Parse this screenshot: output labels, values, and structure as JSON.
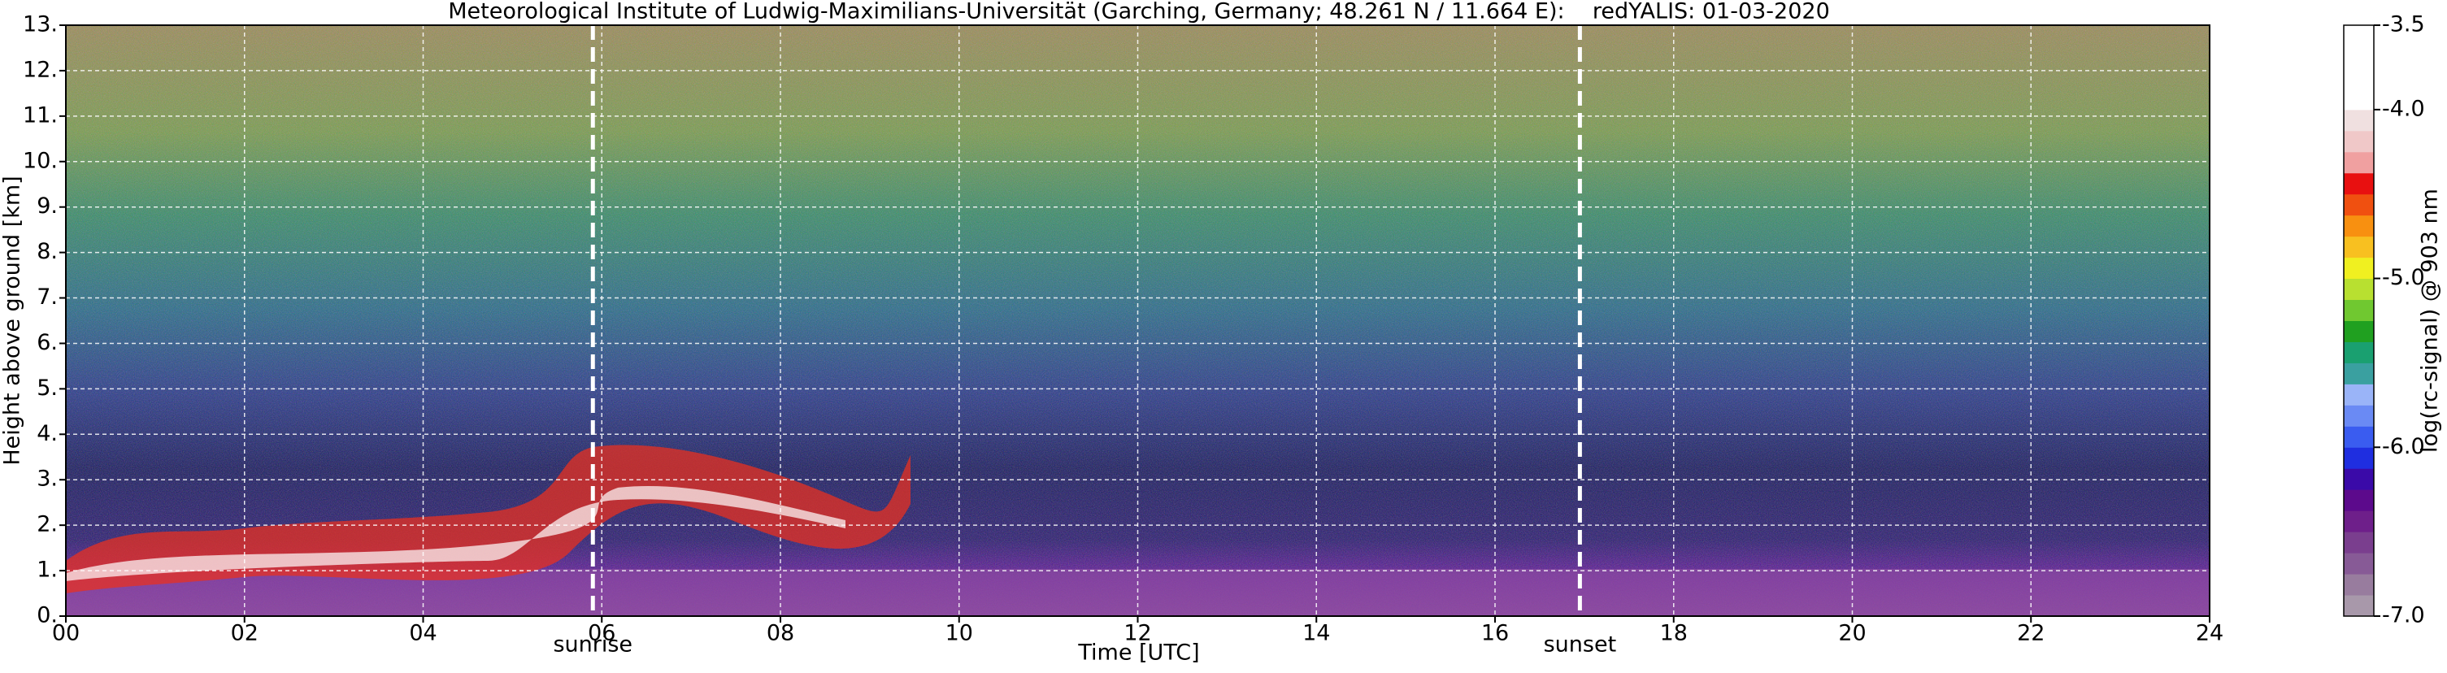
{
  "chart_data": {
    "type": "heatmap",
    "title": "Meteorological Institute of Ludwig-Maximilians-Universität (Garching, Germany; 48.261 N / 11.664 E):    redYALIS: 01-03-2020",
    "x_label": "Time [UTC]",
    "y_label": "Height above ground [km]",
    "xlim": [
      0,
      24
    ],
    "xticks": [
      {
        "value": 0,
        "label": "00"
      },
      {
        "value": 2,
        "label": "02"
      },
      {
        "value": 4,
        "label": "04"
      },
      {
        "value": 6,
        "label": "06"
      },
      {
        "value": 8,
        "label": "08"
      },
      {
        "value": 10,
        "label": "10"
      },
      {
        "value": 12,
        "label": "12"
      },
      {
        "value": 14,
        "label": "14"
      },
      {
        "value": 16,
        "label": "16"
      },
      {
        "value": 18,
        "label": "18"
      },
      {
        "value": 20,
        "label": "20"
      },
      {
        "value": 22,
        "label": "22"
      },
      {
        "value": 24,
        "label": "24"
      }
    ],
    "ylim": [
      0,
      13
    ],
    "yticks": [
      {
        "value": 0,
        "label": "0."
      },
      {
        "value": 1,
        "label": "1."
      },
      {
        "value": 2,
        "label": "2."
      },
      {
        "value": 3,
        "label": "3."
      },
      {
        "value": 4,
        "label": "4."
      },
      {
        "value": 5,
        "label": "5."
      },
      {
        "value": 6,
        "label": "6."
      },
      {
        "value": 7,
        "label": "7."
      },
      {
        "value": 8,
        "label": "8."
      },
      {
        "value": 9,
        "label": "9."
      },
      {
        "value": 10,
        "label": "10."
      },
      {
        "value": 11,
        "label": "11."
      },
      {
        "value": 12,
        "label": "12."
      },
      {
        "value": 13,
        "label": "13."
      }
    ],
    "grid": true,
    "annotations": [
      {
        "text": "sunrise",
        "x": 5.9
      },
      {
        "text": "sunset",
        "x": 16.95
      }
    ],
    "colorbar": {
      "label": "log(rc-signal) @ 903 nm",
      "lim": [
        -7,
        -3.5
      ],
      "ticks": [
        -3.5,
        {
          "value": -4,
          "label": "-4.0"
        },
        {
          "value": -5,
          "label": "-5.0"
        },
        {
          "value": -6,
          "label": "-6.0"
        },
        {
          "value": -7,
          "label": "-7.0"
        }
      ],
      "colors": [
        "#a898aa",
        "#987c9e",
        "#875a96",
        "#7a3e8e",
        "#6e1f8a",
        "#5c0a8c",
        "#3a0aa8",
        "#1f2ee0",
        "#3a5cf0",
        "#6a8af4",
        "#9ab4f8",
        "#3aa0a0",
        "#1aa070",
        "#20a020",
        "#70c830",
        "#b8e030",
        "#f0f020",
        "#f8c020",
        "#f89010",
        "#f05010",
        "#e81010",
        "#f0a0a0",
        "#f0c8c8",
        "#f0e0e0",
        "#ffffff",
        "#ffffff",
        "#ffffff",
        "#ffffff"
      ]
    }
  }
}
